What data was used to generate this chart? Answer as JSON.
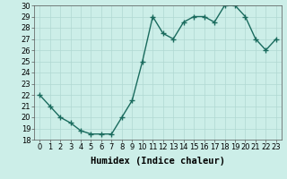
{
  "x": [
    0,
    1,
    2,
    3,
    4,
    5,
    6,
    7,
    8,
    9,
    10,
    11,
    12,
    13,
    14,
    15,
    16,
    17,
    18,
    19,
    20,
    21,
    22,
    23
  ],
  "y": [
    22,
    21,
    20,
    19.5,
    18.8,
    18.5,
    18.5,
    18.5,
    20,
    21.5,
    25,
    29,
    27.5,
    27,
    28.5,
    29,
    29,
    28.5,
    30,
    30,
    29,
    27,
    26,
    27
  ],
  "line_color": "#1a6b5e",
  "marker": "+",
  "marker_size": 4,
  "bg_color": "#cceee8",
  "grid_color": "#b0d8d2",
  "xlabel": "Humidex (Indice chaleur)",
  "ylim": [
    18,
    30
  ],
  "xlim_min": -0.5,
  "xlim_max": 23.5,
  "yticks": [
    18,
    19,
    20,
    21,
    22,
    23,
    24,
    25,
    26,
    27,
    28,
    29,
    30
  ],
  "xticks": [
    0,
    1,
    2,
    3,
    4,
    5,
    6,
    7,
    8,
    9,
    10,
    11,
    12,
    13,
    14,
    15,
    16,
    17,
    18,
    19,
    20,
    21,
    22,
    23
  ],
  "tick_label_fontsize": 6,
  "xlabel_fontsize": 7.5,
  "line_width": 1.0,
  "marker_color": "#1a6b5e"
}
